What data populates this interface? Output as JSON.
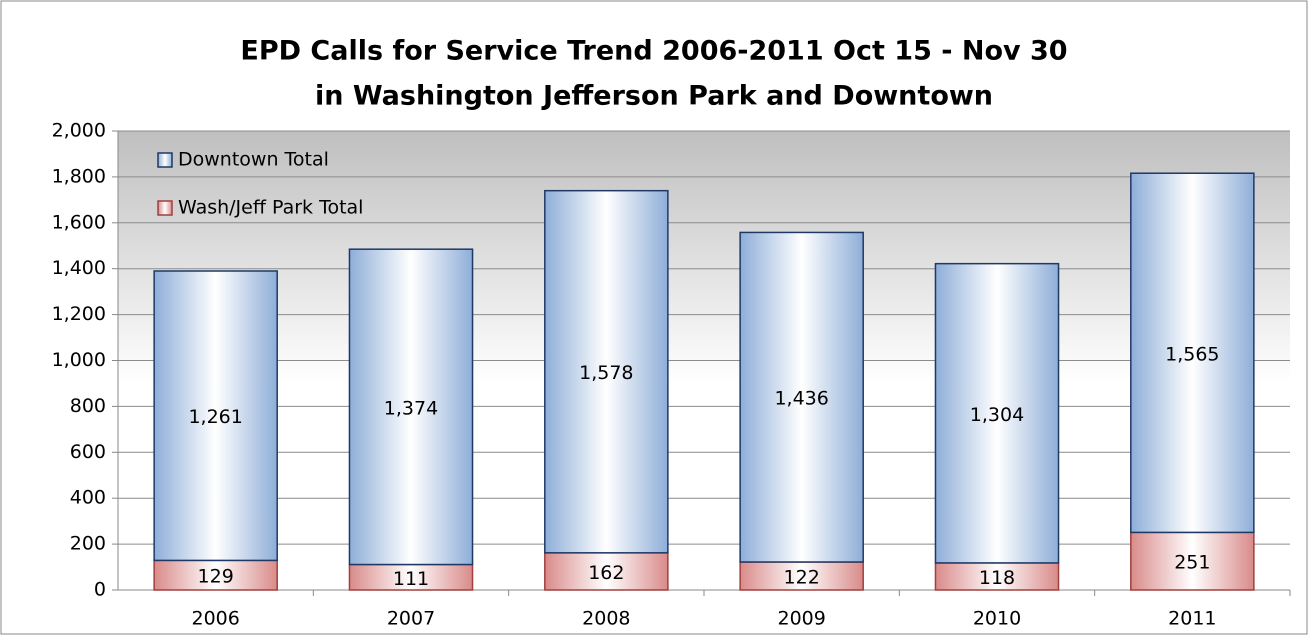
{
  "chart_data": {
    "type": "stacked_bar",
    "title": [
      "EPD Calls for Service Trend 2006-2011 Oct 15 - Nov 30",
      "in Washington Jefferson Park and Downtown"
    ],
    "categories": [
      "2006",
      "2007",
      "2008",
      "2009",
      "2010",
      "2011"
    ],
    "series": [
      {
        "name": "Wash/Jeff Park Total",
        "color": "#d98b8a",
        "values": [
          129,
          111,
          162,
          122,
          118,
          251
        ]
      },
      {
        "name": "Downtown Total",
        "color": "#8eaed8",
        "values": [
          1261,
          1374,
          1578,
          1436,
          1304,
          1565
        ],
        "value_labels": [
          "1,261",
          "1,374",
          "1,578",
          "1,436",
          "1,304",
          "1,565"
        ]
      }
    ],
    "ylim": [
      0,
      2000
    ],
    "yticks": [
      0,
      200,
      400,
      600,
      800,
      {
        "value": 1000,
        "label": "1,000"
      },
      {
        "value": 1200,
        "label": "1,200"
      },
      {
        "value": 1400,
        "label": "1,400"
      },
      {
        "value": 1600,
        "label": "1,600"
      },
      {
        "value": 1800,
        "label": "1,800"
      },
      {
        "value": 2000,
        "label": "2,000"
      }
    ],
    "grid": true,
    "legend": "top-left"
  }
}
